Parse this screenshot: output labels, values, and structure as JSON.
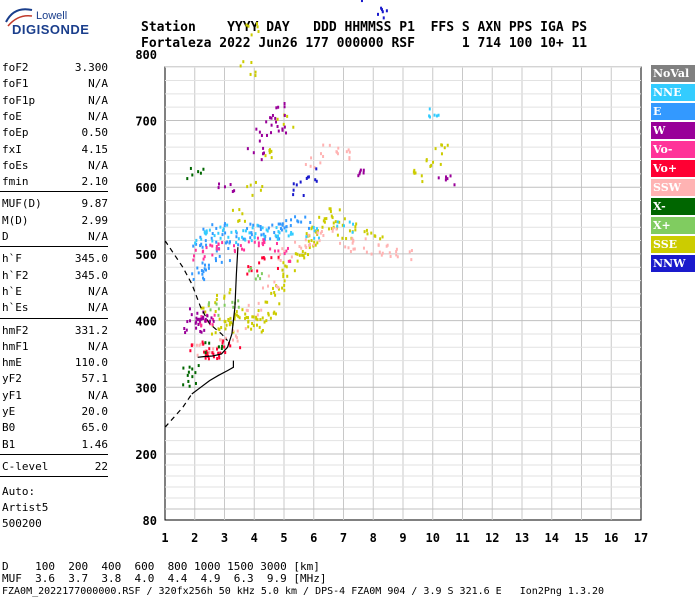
{
  "logo": {
    "top": "Lowell",
    "main": "DIGISONDE"
  },
  "header": {
    "line1": "Station    YYYY DAY   DDD HHMMSS P1  FFS S AXN PPS IGA PS",
    "line2": "Fortaleza 2022 Jun26 177 000000 RSF      1 714 100 10+ 11"
  },
  "params": [
    {
      "k": "foF2",
      "v": "3.300"
    },
    {
      "k": "foF1",
      "v": "N/A"
    },
    {
      "k": "foF1p",
      "v": "N/A"
    },
    {
      "k": "foE",
      "v": "N/A"
    },
    {
      "k": "foEp",
      "v": "0.50"
    },
    {
      "k": "fxI",
      "v": "4.15"
    },
    {
      "k": "foEs",
      "v": "N/A"
    },
    {
      "k": "fmin",
      "v": "2.10"
    },
    {
      "k": "MUF(D)",
      "v": "9.87"
    },
    {
      "k": "M(D)",
      "v": "2.99"
    },
    {
      "k": "D",
      "v": "N/A"
    },
    {
      "k": "h`F",
      "v": "345.0"
    },
    {
      "k": "h`F2",
      "v": "345.0"
    },
    {
      "k": "h`E",
      "v": "N/A"
    },
    {
      "k": "h`Es",
      "v": "N/A"
    },
    {
      "k": "hmF2",
      "v": "331.2"
    },
    {
      "k": "hmF1",
      "v": "N/A"
    },
    {
      "k": "hmE",
      "v": "110.0"
    },
    {
      "k": "yF2",
      "v": "57.1"
    },
    {
      "k": "yF1",
      "v": "N/A"
    },
    {
      "k": "yE",
      "v": "20.0"
    },
    {
      "k": "B0",
      "v": "65.0"
    },
    {
      "k": "B1",
      "v": "1.46"
    },
    {
      "k": "C-level",
      "v": "22"
    }
  ],
  "autoscale": {
    "line1": "Auto:",
    "line2": "Artist5",
    "line3": "500200"
  },
  "legend": [
    {
      "label": "NoVal",
      "color": "#808080"
    },
    {
      "label": "NNE",
      "color": "#33ccff"
    },
    {
      "label": "E",
      "color": "#3399ff"
    },
    {
      "label": "W",
      "color": "#990099"
    },
    {
      "label": "Vo-",
      "color": "#ff3399"
    },
    {
      "label": "Vo+",
      "color": "#ff0033"
    },
    {
      "label": "SSW",
      "color": "#ffb3b3"
    },
    {
      "label": "X-",
      "color": "#006600"
    },
    {
      "label": "X+",
      "color": "#80cc60"
    },
    {
      "label": "SSE",
      "color": "#cccc00"
    },
    {
      "label": "NNW",
      "color": "#1a1acc"
    }
  ],
  "bottom": {
    "d_line": "D    100  200  400  600  800 1000 1500 3000 [km]",
    "muf_line": "MUF  3.6  3.7  3.8  4.0  4.4  4.9  6.3  9.9 [MHz]",
    "info_line": "FZA0M_2022177000000.RSF / 320fx256h 50 kHz 5.0 km / DPS-4 FZA0M 904 / 3.9 S 321.6 E   Ion2Png 1.3.20"
  },
  "chart_data": {
    "type": "scatter",
    "title": "",
    "xlabel": "",
    "ylabel": "",
    "xlim": [
      1,
      17
    ],
    "ylim": [
      80,
      900
    ],
    "x_ticks": [
      1,
      2,
      3,
      4,
      5,
      6,
      7,
      8,
      9,
      10,
      11,
      12,
      13,
      14,
      15,
      16,
      17
    ],
    "y_ticks": [
      80,
      200,
      300,
      400,
      500,
      600,
      700,
      800,
      900
    ],
    "grid": true,
    "legend_position": "right",
    "series": [
      {
        "name": "SSE",
        "color": "#cccc00",
        "points": [
          [
            2.8,
            390
          ],
          [
            3.0,
            395
          ],
          [
            3.2,
            400
          ],
          [
            3.4,
            405
          ],
          [
            3.6,
            410
          ],
          [
            3.8,
            400
          ],
          [
            4.0,
            395
          ],
          [
            4.2,
            405
          ],
          [
            4.4,
            410
          ],
          [
            4.6,
            420
          ],
          [
            4.8,
            440
          ],
          [
            5.0,
            460
          ],
          [
            5.2,
            480
          ],
          [
            5.4,
            500
          ],
          [
            5.6,
            510
          ],
          [
            5.8,
            520
          ],
          [
            6.0,
            530
          ],
          [
            6.2,
            540
          ],
          [
            6.4,
            550
          ],
          [
            6.6,
            560
          ],
          [
            6.8,
            545
          ],
          [
            7.0,
            535
          ],
          [
            7.5,
            540
          ],
          [
            8.0,
            530
          ],
          [
            3.5,
            560
          ],
          [
            4.0,
            600
          ],
          [
            4.5,
            650
          ],
          [
            5.0,
            700
          ],
          [
            3.8,
            780
          ],
          [
            4.0,
            840
          ],
          [
            9.6,
            620
          ],
          [
            10.0,
            640
          ],
          [
            10.3,
            660
          ],
          [
            2.5,
            420
          ],
          [
            3.0,
            440
          ]
        ]
      },
      {
        "name": "E",
        "color": "#3399ff",
        "points": [
          [
            2.0,
            470
          ],
          [
            2.3,
            480
          ],
          [
            2.6,
            490
          ],
          [
            3.0,
            500
          ],
          [
            3.3,
            520
          ],
          [
            3.6,
            530
          ],
          [
            4.0,
            540
          ],
          [
            4.3,
            535
          ],
          [
            4.6,
            530
          ],
          [
            5.0,
            540
          ],
          [
            5.3,
            545
          ],
          [
            5.6,
            550
          ],
          [
            2.1,
            520
          ],
          [
            2.4,
            530
          ],
          [
            2.8,
            540
          ]
        ]
      },
      {
        "name": "NNE",
        "color": "#33ccff",
        "points": [
          [
            2.2,
            525
          ],
          [
            2.6,
            530
          ],
          [
            3.0,
            535
          ],
          [
            3.4,
            528
          ],
          [
            3.8,
            532
          ],
          [
            4.2,
            538
          ],
          [
            4.6,
            534
          ],
          [
            5.0,
            530
          ],
          [
            6.0,
            535
          ],
          [
            7.0,
            540
          ],
          [
            10.0,
            710
          ]
        ]
      },
      {
        "name": "SSW",
        "color": "#ffb3b3",
        "points": [
          [
            2.2,
            360
          ],
          [
            2.6,
            365
          ],
          [
            3.0,
            370
          ],
          [
            3.4,
            380
          ],
          [
            4.0,
            420
          ],
          [
            4.5,
            460
          ],
          [
            5.0,
            500
          ],
          [
            5.5,
            520
          ],
          [
            6.0,
            525
          ],
          [
            6.5,
            530
          ],
          [
            7.0,
            520
          ],
          [
            7.5,
            515
          ],
          [
            8.0,
            510
          ],
          [
            8.5,
            505
          ],
          [
            9.0,
            500
          ],
          [
            6.0,
            640
          ],
          [
            6.5,
            660
          ],
          [
            7.0,
            650
          ]
        ]
      },
      {
        "name": "Vo-",
        "color": "#ff3399",
        "points": [
          [
            2.0,
            500
          ],
          [
            2.5,
            505
          ],
          [
            3.0,
            510
          ],
          [
            3.5,
            515
          ],
          [
            4.0,
            520
          ],
          [
            4.5,
            510
          ],
          [
            5.0,
            500
          ],
          [
            2.2,
            400
          ],
          [
            2.4,
            405
          ]
        ]
      },
      {
        "name": "Vo+",
        "color": "#ff0033",
        "points": [
          [
            2.1,
            360
          ],
          [
            2.3,
            355
          ],
          [
            2.6,
            352
          ],
          [
            2.9,
            355
          ],
          [
            3.2,
            362
          ],
          [
            4.0,
            480
          ],
          [
            4.5,
            490
          ]
        ]
      },
      {
        "name": "W",
        "color": "#990099",
        "points": [
          [
            1.9,
            390
          ],
          [
            2.0,
            395
          ],
          [
            2.2,
            400
          ],
          [
            2.4,
            405
          ],
          [
            2.1,
            410
          ],
          [
            4.0,
            650
          ],
          [
            4.3,
            680
          ],
          [
            4.6,
            700
          ],
          [
            4.8,
            720
          ],
          [
            5.0,
            690
          ],
          [
            3.0,
            600
          ],
          [
            7.6,
            620
          ],
          [
            10.4,
            615
          ]
        ]
      },
      {
        "name": "NNW",
        "color": "#1a1acc",
        "points": [
          [
            7.8,
            890
          ],
          [
            8.2,
            862
          ],
          [
            5.5,
            600
          ],
          [
            6.0,
            620
          ]
        ]
      },
      {
        "name": "X-",
        "color": "#006600",
        "points": [
          [
            1.8,
            310
          ],
          [
            1.8,
            325
          ],
          [
            2.0,
            620
          ],
          [
            2.6,
            360
          ]
        ]
      },
      {
        "name": "X+",
        "color": "#80cc60",
        "points": [
          [
            2.5,
            420
          ],
          [
            3.2,
            430
          ],
          [
            4.0,
            470
          ]
        ]
      }
    ],
    "traces": [
      {
        "name": "profile",
        "style": "solid",
        "points": [
          [
            2.1,
            345
          ],
          [
            2.3,
            346
          ],
          [
            2.6,
            347
          ],
          [
            2.9,
            350
          ],
          [
            3.1,
            360
          ],
          [
            3.25,
            380
          ],
          [
            3.35,
            420
          ],
          [
            3.4,
            470
          ],
          [
            3.45,
            510
          ]
        ]
      },
      {
        "name": "profile-lower",
        "style": "solid",
        "points": [
          [
            1.9,
            290
          ],
          [
            2.2,
            300
          ],
          [
            2.5,
            310
          ],
          [
            2.8,
            318
          ],
          [
            3.1,
            325
          ],
          [
            3.3,
            330
          ],
          [
            3.3,
            340
          ]
        ]
      },
      {
        "name": "profile-dashed",
        "style": "dashed",
        "points": [
          [
            1.0,
            240
          ],
          [
            1.3,
            255
          ],
          [
            1.6,
            270
          ],
          [
            1.9,
            290
          ]
        ]
      },
      {
        "name": "profile-dashed-upper",
        "style": "dashed",
        "points": [
          [
            1.0,
            520
          ],
          [
            1.3,
            500
          ],
          [
            1.6,
            480
          ],
          [
            1.9,
            455
          ],
          [
            2.2,
            420
          ],
          [
            2.5,
            395
          ],
          [
            2.9,
            380
          ],
          [
            3.1,
            370
          ]
        ]
      }
    ]
  }
}
